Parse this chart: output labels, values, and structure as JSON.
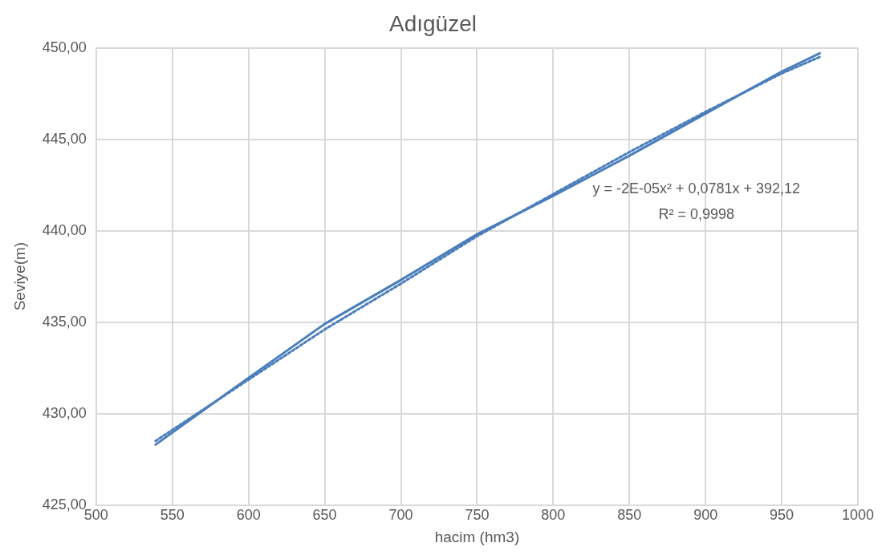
{
  "chart_data": {
    "type": "line",
    "title": "Adıgüzel",
    "xlabel": "hacim (hm3)",
    "ylabel": "Seviye(m)",
    "xlim": [
      500,
      1000
    ],
    "xticks": [
      500,
      550,
      600,
      650,
      700,
      750,
      800,
      850,
      900,
      950,
      1000
    ],
    "ylim": [
      425,
      450
    ],
    "yticks": [
      {
        "value": 425,
        "label": "425,00"
      },
      {
        "value": 430,
        "label": "430,00"
      },
      {
        "value": 435,
        "label": "435,00"
      },
      {
        "value": 440,
        "label": "440,00"
      },
      {
        "value": 445,
        "label": "445,00"
      },
      {
        "value": 450,
        "label": "450,00"
      }
    ],
    "grid": true,
    "marker": "none",
    "series": [
      {
        "color": "#4a7ebb",
        "line_style": "solid",
        "x": [
          539,
          600,
          650,
          700,
          750,
          800,
          850,
          900,
          950,
          975
        ],
        "values": [
          428.3,
          431.95,
          434.9,
          437.3,
          439.8,
          441.9,
          444.1,
          446.4,
          448.7,
          449.7
        ]
      },
      {
        "type": "line",
        "color": "#4a7ebb",
        "line_style": "dotted",
        "x": [
          539,
          600,
          650,
          700,
          750,
          800,
          850,
          900,
          950,
          975
        ],
        "values": [
          428.5,
          431.85,
          434.6,
          437.1,
          439.7,
          442.0,
          444.3,
          446.5,
          448.6,
          449.5
        ]
      }
    ],
    "annotations": [
      "y = -2E-05x² + 0,0781x + 392,12",
      "R² = 0,9998"
    ]
  }
}
